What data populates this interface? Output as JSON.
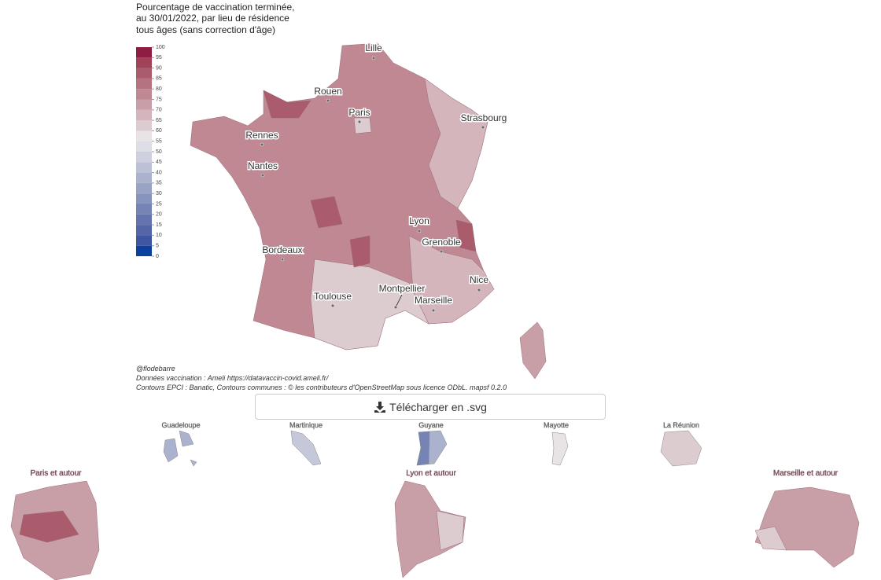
{
  "title": [
    "Pourcentage de vaccination terminée,",
    "au 30/01/2022, par lieu de résidence",
    "tous âges (sans correction d'âge)"
  ],
  "legend": {
    "ticks": [
      0,
      5,
      10,
      15,
      20,
      25,
      30,
      35,
      40,
      45,
      50,
      55,
      60,
      65,
      70,
      75,
      80,
      85,
      90,
      95,
      100
    ],
    "colors": [
      "#0b3fa0",
      "#3f57a2",
      "#5466a8",
      "#6474ae",
      "#7684b5",
      "#8794bd",
      "#98a3c5",
      "#aab2cd",
      "#bcc1d6",
      "#cdd0de",
      "#dedfe6",
      "#e8e3e4",
      "#dccbcf",
      "#d3b5bb",
      "#c99fa7",
      "#bf8893",
      "#b5727f",
      "#aa5b6c",
      "#a04358",
      "#8e1c43"
    ]
  },
  "cities": [
    "Lille",
    "Rouen",
    "Paris",
    "Strasbourg",
    "Rennes",
    "Nantes",
    "Lyon",
    "Grenoble",
    "Bordeaux",
    "Nice",
    "Montpellier",
    "Marseille",
    "Toulouse"
  ],
  "credits": [
    "@flodebarre",
    "Données vaccination : Ameli https://datavaccin-covid.ameli.fr/",
    "Contours EPCI : Banatic, Contours communes : © les contributeurs d'OpenStreetMap sous licence ODbL. mapsf 0.2.0"
  ],
  "download_button": "Télécharger en .svg",
  "overseas": [
    "Guadeloupe",
    "Martinique",
    "Guyane",
    "Mayotte",
    "La Réunion"
  ],
  "zooms": [
    "Paris et autour",
    "Lyon et autour",
    "Marseille et autour"
  ]
}
